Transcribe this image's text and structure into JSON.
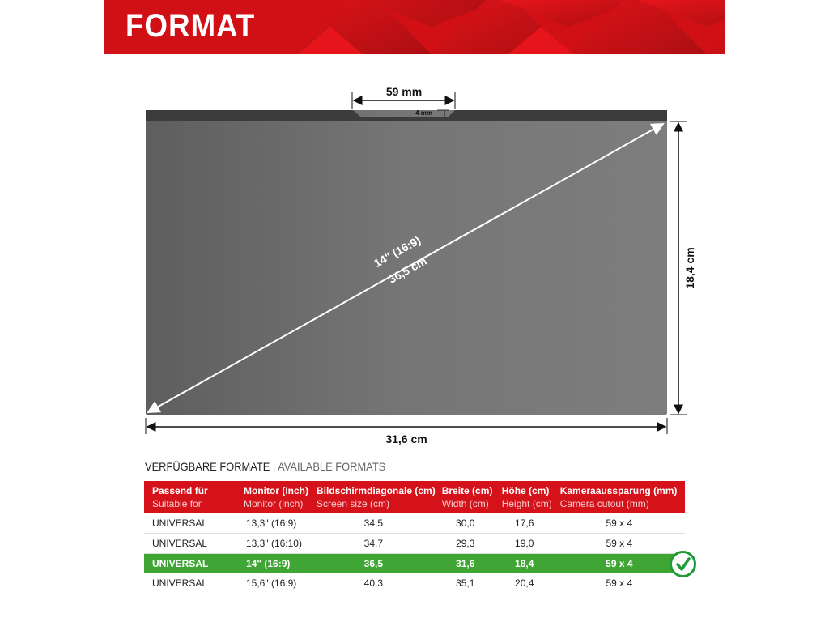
{
  "banner": {
    "title": "FORMAT",
    "color": "#d01015"
  },
  "diagram": {
    "cutout_width": "59 mm",
    "cutout_height": "4 mm",
    "diagonal_inch": "14\" (16:9)",
    "diagonal_cm": "36,5 cm",
    "width": "31,6 cm",
    "height": "18,4 cm"
  },
  "section": {
    "title_de": "VERFÜGBARE FORMATE",
    "separator": " | ",
    "title_en": "AVAILABLE FORMATS"
  },
  "table": {
    "headers": [
      {
        "de": "Passend für",
        "en": "Suitable for"
      },
      {
        "de": "Monitor (Inch)",
        "en": "Monitor (inch)"
      },
      {
        "de": "Bildschirmdiagonale (cm)",
        "en": "Screen size (cm)"
      },
      {
        "de": "Breite (cm)",
        "en": "Width (cm)"
      },
      {
        "de": "Höhe (cm)",
        "en": "Height (cm)"
      },
      {
        "de": "Kameraaussparung (mm)",
        "en": "Camera cutout (mm)"
      }
    ],
    "rows": [
      [
        "UNIVERSAL",
        "13,3\" (16:9)",
        "34,5",
        "30,0",
        "17,6",
        "59 x 4"
      ],
      [
        "UNIVERSAL",
        "13,3\" (16:10)",
        "34,7",
        "29,3",
        "19,0",
        "59 x 4"
      ],
      [
        "UNIVERSAL",
        "14\" (16:9)",
        "36,5",
        "31,6",
        "18,4",
        "59 x 4"
      ],
      [
        "UNIVERSAL",
        "15,6\" (16:9)",
        "40,3",
        "35,1",
        "20,4",
        "59 x 4"
      ]
    ],
    "highlighted_row": 2,
    "header_color": "#d5121a",
    "highlight_color": "#3fa535"
  },
  "icons": {
    "selected": "check-circle-icon"
  }
}
